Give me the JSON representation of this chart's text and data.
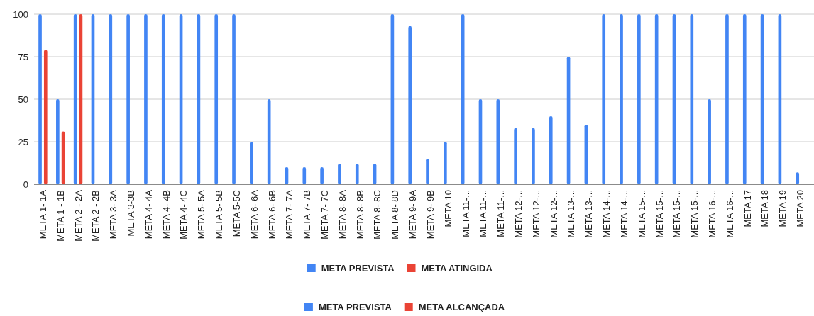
{
  "chart_data": {
    "type": "bar",
    "categories": [
      "META 1- 1A",
      "META 1 - 1B",
      "META 2 - 2A",
      "META 2 - 2B",
      "META 3- 3A",
      "META 3-3B",
      "META 4- 4A",
      "META 4- 4B",
      "META 4- 4C",
      "META 5- 5A",
      "META 5- 5B",
      "META 5-5C",
      "META 6- 6A",
      "META 6- 6B",
      "META 7- 7A",
      "META 7- 7B",
      "META 7- 7C",
      "META 8- 8A",
      "META 8- 8B",
      "META 8- 8C",
      "META 8- 8D",
      "META 9- 9A",
      "META 9- 9B",
      "META 10",
      "META 11-...",
      "META 11-...",
      "META 11-...",
      "META 12-...",
      "META 12-...",
      "META 12-...",
      "META 13-...",
      "META 13-...",
      "META 14-...",
      "META 14-...",
      "META 15-...",
      "META 15-...",
      "META 15-...",
      "META 15-...",
      "META 16-...",
      "META 16-...",
      "META 17",
      "META 18",
      "META 19",
      "META 20"
    ],
    "series": [
      {
        "name": "META PREVISTA",
        "color": "#4285f4",
        "values": [
          100,
          50,
          100,
          100,
          100,
          100,
          100,
          100,
          100,
          100,
          100,
          100,
          25,
          50,
          10,
          10,
          10,
          12,
          12,
          12,
          100,
          93,
          15,
          25,
          100,
          50,
          50,
          33,
          33,
          40,
          75,
          35,
          100,
          100,
          100,
          100,
          100,
          100,
          50,
          100,
          100,
          100,
          100,
          7
        ]
      },
      {
        "name": "META ATINGIDA",
        "color": "#ea4335",
        "values": [
          79,
          31,
          100,
          null,
          null,
          null,
          null,
          null,
          null,
          null,
          null,
          null,
          null,
          null,
          null,
          null,
          null,
          null,
          null,
          null,
          null,
          null,
          null,
          null,
          null,
          null,
          null,
          null,
          null,
          null,
          null,
          null,
          null,
          null,
          null,
          null,
          null,
          null,
          null,
          null,
          null,
          null,
          null,
          null
        ]
      }
    ],
    "ylim": [
      0,
      100
    ],
    "yticks": [
      0,
      25,
      50,
      75,
      100
    ],
    "grid": "y",
    "legend": "bottom",
    "annotations": [
      "META PREVISTA",
      "META ALCANÇADA"
    ]
  }
}
